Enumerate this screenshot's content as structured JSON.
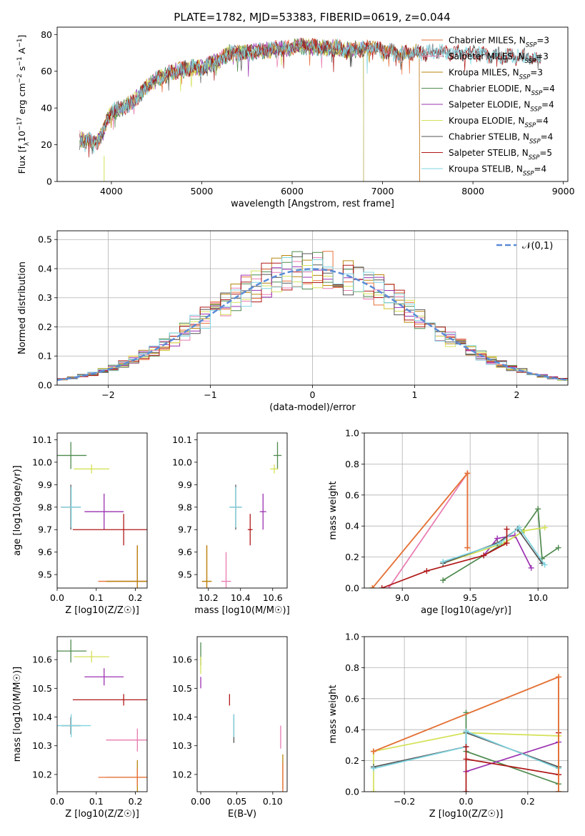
{
  "figure_title": "PLATE=1782, MJD=53383, FIBERID=0619, z=0.044",
  "colors": {
    "Chabrier MILES": "#e8703a",
    "Salpeter MILES": "#e87ab0",
    "Kroupa MILES": "#b8860b",
    "Chabrier ELODIE": "#4f8a4f",
    "Salpeter ELODIE": "#9b30b0",
    "Kroupa ELODIE": "#d4e157",
    "Chabrier STELIB": "#555555",
    "Salpeter STELIB": "#b01818",
    "Kroupa STELIB": "#7fd4e0",
    "normal": "#5b8bd6"
  },
  "chart_data": [
    {
      "id": "spectrum",
      "type": "line",
      "title": "PLATE=1782, MJD=53383, FIBERID=0619, z=0.044",
      "xlabel": "wavelength [Angstrom, rest frame]",
      "ylabel": "Flux [f_λ 10^-17 erg cm^-2 s^-1 A^-1]",
      "xlim": [
        3400,
        9050
      ],
      "ylim": [
        0,
        84
      ],
      "xticks": [
        4000,
        5000,
        6000,
        7000,
        8000,
        9000
      ],
      "yticks": [
        0,
        20,
        40,
        60,
        80
      ],
      "legend_position": "upper-right",
      "legend": [
        {
          "model": "Chabrier MILES",
          "label": "Chabrier MILES, N",
          "nssp": "=3"
        },
        {
          "model": "Salpeter MILES",
          "label": "Salpeter MILES, N",
          "nssp": "=3"
        },
        {
          "model": "Kroupa MILES",
          "label": "Kroupa MILES, N",
          "nssp": "=3"
        },
        {
          "model": "Chabrier ELODIE",
          "label": "Chabrier ELODIE, N",
          "nssp": "=4"
        },
        {
          "model": "Salpeter ELODIE",
          "label": "Salpeter ELODIE, N",
          "nssp": "=4"
        },
        {
          "model": "Kroupa ELODIE",
          "label": "Kroupa ELODIE, N",
          "nssp": "=4"
        },
        {
          "model": "Chabrier STELIB",
          "label": "Chabrier STELIB, N",
          "nssp": "=4"
        },
        {
          "model": "Salpeter STELIB",
          "label": "Salpeter STELIB, N",
          "nssp": "=5"
        },
        {
          "model": "Kroupa STELIB",
          "label": "Kroupa STELIB, N",
          "nssp": "=4"
        }
      ],
      "continuum": [
        [
          3650,
          24
        ],
        [
          3700,
          22
        ],
        [
          3750,
          23
        ],
        [
          3800,
          21
        ],
        [
          3850,
          22
        ],
        [
          3900,
          26
        ],
        [
          3950,
          33
        ],
        [
          4000,
          38
        ],
        [
          4100,
          40
        ],
        [
          4200,
          42
        ],
        [
          4300,
          46
        ],
        [
          4400,
          52
        ],
        [
          4500,
          56
        ],
        [
          4600,
          58
        ],
        [
          4700,
          60
        ],
        [
          4800,
          61
        ],
        [
          4900,
          62
        ],
        [
          5000,
          62
        ],
        [
          5100,
          64
        ],
        [
          5200,
          66
        ],
        [
          5300,
          70
        ],
        [
          5400,
          70
        ],
        [
          5500,
          70
        ],
        [
          5600,
          71
        ],
        [
          5700,
          71
        ],
        [
          5800,
          72
        ],
        [
          5900,
          72
        ],
        [
          6000,
          73
        ],
        [
          6100,
          74
        ],
        [
          6200,
          73
        ],
        [
          6300,
          73
        ],
        [
          6400,
          72
        ],
        [
          6500,
          73
        ],
        [
          6600,
          71
        ],
        [
          6700,
          72
        ],
        [
          6800,
          72
        ],
        [
          6900,
          73
        ],
        [
          7000,
          71
        ],
        [
          7100,
          71
        ],
        [
          7200,
          69
        ],
        [
          7300,
          70
        ],
        [
          7400,
          70
        ],
        [
          7500,
          70
        ],
        [
          7600,
          71
        ],
        [
          7700,
          70
        ],
        [
          7800,
          70
        ],
        [
          7900,
          70
        ],
        [
          8000,
          70
        ],
        [
          8200,
          69
        ],
        [
          8400,
          68
        ],
        [
          8600,
          68
        ],
        [
          8750,
          66
        ]
      ],
      "ranges": {
        "Chabrier MILES": [
          3650,
          7410
        ],
        "Salpeter MILES": [
          3650,
          7410
        ],
        "Kroupa MILES": [
          3650,
          7410
        ],
        "Chabrier ELODIE": [
          3650,
          6790
        ],
        "Salpeter ELODIE": [
          3650,
          6790
        ],
        "Kroupa ELODIE": [
          3650,
          6790
        ],
        "Chabrier STELIB": [
          3650,
          8750
        ],
        "Salpeter STELIB": [
          3650,
          8750
        ],
        "Kroupa STELIB": [
          3650,
          8750
        ]
      }
    },
    {
      "id": "residuals",
      "type": "line",
      "xlabel": "(data-model)/error",
      "ylabel": "Normed distribution",
      "xlim": [
        -2.5,
        2.5
      ],
      "ylim": [
        0,
        0.53
      ],
      "xticks": [
        -2,
        -1,
        0,
        1,
        2
      ],
      "yticks": [
        0.0,
        0.1,
        0.2,
        0.3,
        0.4,
        0.5
      ],
      "grid": true,
      "bin_width": 0.1,
      "legend_position": "upper-right",
      "normal_label": "𝒩(0,1)"
    },
    {
      "id": "age-Z",
      "type": "scatter",
      "xlabel": "Z [log10(Z/Z☉)]",
      "ylabel": "age [log10(age/yr)]",
      "xlim": [
        0.0,
        0.23
      ],
      "ylim": [
        9.44,
        10.13
      ],
      "xticks": [
        0.0,
        0.1,
        0.2
      ],
      "yticks": [
        9.5,
        9.6,
        9.7,
        9.8,
        9.9,
        10.0,
        10.1
      ],
      "points": [
        {
          "model": "Chabrier ELODIE",
          "x": 0.035,
          "y": 10.03,
          "xerr": 0.04,
          "yerr": 0.06
        },
        {
          "model": "Kroupa ELODIE",
          "x": 0.088,
          "y": 9.97,
          "xerr": 0.045,
          "yerr": 0.02
        },
        {
          "model": "Chabrier STELIB",
          "x": 0.035,
          "y": 9.8,
          "xerr": 0.025,
          "yerr": 0.1
        },
        {
          "model": "Kroupa STELIB",
          "x": 0.036,
          "y": 9.8,
          "xerr": 0.025,
          "yerr": 0.09
        },
        {
          "model": "Salpeter ELODIE",
          "x": 0.12,
          "y": 9.78,
          "xerr": 0.05,
          "yerr": 0.08
        },
        {
          "model": "Salpeter STELIB",
          "x": 0.17,
          "y": 9.7,
          "xerr": 0.13,
          "yerr": 0.07
        },
        {
          "model": "Chabrier MILES",
          "x": 0.205,
          "y": 9.47,
          "xerr": 0.1,
          "yerr": 0.16
        },
        {
          "model": "Salpeter MILES",
          "x": 0.205,
          "y": 9.47,
          "xerr": 0.08,
          "yerr": 0.16
        },
        {
          "model": "Kroupa MILES",
          "x": 0.205,
          "y": 9.47,
          "xerr": 0.08,
          "yerr": 0.16
        }
      ]
    },
    {
      "id": "age-mass",
      "type": "scatter",
      "xlabel": "mass [log10(M/M☉)]",
      "ylabel": "",
      "xlim": [
        10.13,
        10.69
      ],
      "ylim": [
        9.44,
        10.13
      ],
      "xticks": [
        10.2,
        10.4,
        10.6
      ],
      "yticks": [
        9.5,
        9.6,
        9.7,
        9.8,
        9.9,
        10.0,
        10.1
      ],
      "points": [
        {
          "model": "Chabrier ELODIE",
          "x": 10.63,
          "y": 10.03,
          "xerr": 0.025,
          "yerr": 0.06
        },
        {
          "model": "Kroupa ELODIE",
          "x": 10.61,
          "y": 9.97,
          "xerr": 0.025,
          "yerr": 0.02
        },
        {
          "model": "Chabrier STELIB",
          "x": 10.37,
          "y": 9.8,
          "xerr": 0.035,
          "yerr": 0.1
        },
        {
          "model": "Kroupa STELIB",
          "x": 10.37,
          "y": 9.8,
          "xerr": 0.04,
          "yerr": 0.09
        },
        {
          "model": "Salpeter ELODIE",
          "x": 10.54,
          "y": 9.78,
          "xerr": 0.02,
          "yerr": 0.08
        },
        {
          "model": "Salpeter STELIB",
          "x": 10.46,
          "y": 9.7,
          "xerr": 0.015,
          "yerr": 0.07
        },
        {
          "model": "Chabrier MILES",
          "x": 10.19,
          "y": 9.47,
          "xerr": 0.03,
          "yerr": 0.16
        },
        {
          "model": "Salpeter MILES",
          "x": 10.31,
          "y": 9.47,
          "xerr": 0.03,
          "yerr": 0.13
        },
        {
          "model": "Kroupa MILES",
          "x": 10.19,
          "y": 9.47,
          "xerr": 0.03,
          "yerr": 0.16
        }
      ]
    },
    {
      "id": "mw-age",
      "type": "line",
      "xlabel": "age [log10(age/yr)]",
      "ylabel": "mass weight",
      "xlim": [
        8.72,
        10.22
      ],
      "ylim": [
        0,
        1.0
      ],
      "xticks": [
        9.0,
        9.5,
        10.0
      ],
      "yticks": [
        0.0,
        0.2,
        0.4,
        0.6,
        0.8,
        1.0
      ],
      "grid": true,
      "series": [
        {
          "model": "Salpeter MILES",
          "points": [
            [
              8.9,
              0.0
            ],
            [
              9.48,
              0.74
            ],
            [
              9.48,
              0.26
            ]
          ]
        },
        {
          "model": "Kroupa MILES",
          "points": [
            [
              8.78,
              0.0
            ],
            [
              9.48,
              0.74
            ],
            [
              9.48,
              0.26
            ]
          ]
        },
        {
          "model": "Chabrier MILES",
          "points": [
            [
              8.78,
              0.0
            ],
            [
              9.48,
              0.74
            ],
            [
              9.48,
              0.26
            ]
          ]
        },
        {
          "model": "Chabrier ELODIE",
          "points": [
            [
              9.3,
              0.05
            ],
            [
              9.88,
              0.36
            ],
            [
              10.0,
              0.51
            ],
            [
              10.03,
              0.19
            ],
            [
              10.15,
              0.26
            ]
          ]
        },
        {
          "model": "Salpeter ELODIE",
          "points": [
            [
              9.6,
              0.21
            ],
            [
              9.7,
              0.32
            ],
            [
              9.83,
              0.34
            ],
            [
              9.95,
              0.13
            ]
          ]
        },
        {
          "model": "Kroupa ELODIE",
          "points": [
            [
              9.3,
              0.16
            ],
            [
              9.75,
              0.29
            ],
            [
              9.9,
              0.37
            ],
            [
              10.05,
              0.39
            ]
          ]
        },
        {
          "model": "Chabrier STELIB",
          "points": [
            [
              9.3,
              0.16
            ],
            [
              9.7,
              0.29
            ],
            [
              9.85,
              0.38
            ],
            [
              10.03,
              0.16
            ]
          ]
        },
        {
          "model": "Kroupa STELIB",
          "points": [
            [
              9.3,
              0.17
            ],
            [
              9.72,
              0.29
            ],
            [
              9.86,
              0.39
            ],
            [
              10.05,
              0.15
            ]
          ]
        },
        {
          "model": "Salpeter STELIB",
          "points": [
            [
              8.85,
              0.0
            ],
            [
              9.18,
              0.11
            ],
            [
              9.6,
              0.21
            ],
            [
              9.77,
              0.29
            ],
            [
              9.77,
              0.38
            ]
          ]
        }
      ]
    },
    {
      "id": "mass-Z",
      "type": "scatter",
      "xlabel": "Z [log10(Z/Z☉)]",
      "ylabel": "mass [log10(M/M☉)]",
      "xlim": [
        0.0,
        0.23
      ],
      "ylim": [
        10.14,
        10.68
      ],
      "xticks": [
        0.0,
        0.1,
        0.2
      ],
      "yticks": [
        10.2,
        10.3,
        10.4,
        10.5,
        10.6
      ],
      "points": [
        {
          "model": "Chabrier ELODIE",
          "x": 0.035,
          "y": 10.63,
          "xerr": 0.04,
          "yerr": 0.04
        },
        {
          "model": "Kroupa ELODIE",
          "x": 0.088,
          "y": 10.61,
          "xerr": 0.045,
          "yerr": 0.02
        },
        {
          "model": "Salpeter ELODIE",
          "x": 0.12,
          "y": 10.54,
          "xerr": 0.05,
          "yerr": 0.03
        },
        {
          "model": "Salpeter STELIB",
          "x": 0.17,
          "y": 10.46,
          "xerr": 0.13,
          "yerr": 0.02
        },
        {
          "model": "Chabrier STELIB",
          "x": 0.035,
          "y": 10.37,
          "xerr": 0.025,
          "yerr": 0.03
        },
        {
          "model": "Kroupa STELIB",
          "x": 0.036,
          "y": 10.37,
          "xerr": 0.05,
          "yerr": 0.04
        },
        {
          "model": "Salpeter MILES",
          "x": 0.205,
          "y": 10.32,
          "xerr": 0.08,
          "yerr": 0.04
        },
        {
          "model": "Kroupa MILES",
          "x": 0.205,
          "y": 10.19,
          "xerr": 0.08,
          "yerr": 0.06
        },
        {
          "model": "Chabrier MILES",
          "x": 0.205,
          "y": 10.19,
          "xerr": 0.1,
          "yerr": 0.03
        }
      ]
    },
    {
      "id": "mass-ebv",
      "type": "scatter",
      "xlabel": "E(B-V)",
      "ylabel": "",
      "xlim": [
        -0.005,
        0.12
      ],
      "ylim": [
        10.14,
        10.68
      ],
      "xticks": [
        0.0,
        0.05,
        0.1
      ],
      "yticks": [
        10.2,
        10.3,
        10.4,
        10.5,
        10.6
      ],
      "points": [
        {
          "model": "Chabrier ELODIE",
          "x": 0.0,
          "y": 10.62,
          "xerr": 0,
          "yerr": 0.04
        },
        {
          "model": "Kroupa ELODIE",
          "x": 0.0,
          "y": 10.58,
          "xerr": 0,
          "yerr": 0.03
        },
        {
          "model": "Salpeter ELODIE",
          "x": 0.0,
          "y": 10.52,
          "xerr": 0,
          "yerr": 0.02
        },
        {
          "model": "Salpeter STELIB",
          "x": 0.04,
          "y": 10.46,
          "xerr": 0,
          "yerr": 0.02
        },
        {
          "model": "Chabrier STELIB",
          "x": 0.046,
          "y": 10.36,
          "xerr": 0,
          "yerr": 0.05
        },
        {
          "model": "Kroupa STELIB",
          "x": 0.046,
          "y": 10.37,
          "xerr": 0,
          "yerr": 0.04
        },
        {
          "model": "Salpeter MILES",
          "x": 0.111,
          "y": 10.33,
          "xerr": 0,
          "yerr": 0.04
        },
        {
          "model": "Kroupa MILES",
          "x": 0.114,
          "y": 10.21,
          "xerr": 0,
          "yerr": 0.06
        },
        {
          "model": "Chabrier MILES",
          "x": 0.114,
          "y": 10.19,
          "xerr": 0,
          "yerr": 0.05
        }
      ]
    },
    {
      "id": "mw-Z",
      "type": "line",
      "xlabel": "Z [log10(Z/Z☉)]",
      "ylabel": "mass weight",
      "xlim": [
        -0.33,
        0.33
      ],
      "ylim": [
        0,
        1.0
      ],
      "xticks": [
        -0.2,
        0.0,
        0.2
      ],
      "yticks": [
        0.0,
        0.2,
        0.4,
        0.6,
        0.8,
        1.0
      ],
      "grid": true,
      "series": [
        {
          "model": "Kroupa ELODIE",
          "points": [
            [
              -0.3,
              0.0
            ],
            [
              -0.3,
              0.26
            ],
            [
              0.0,
              0.38
            ],
            [
              0.3,
              0.36
            ]
          ]
        },
        {
          "model": "Chabrier ELODIE",
          "points": [
            [
              0.0,
              0.51
            ],
            [
              0.0,
              0.26
            ],
            [
              0.3,
              0.05
            ]
          ]
        },
        {
          "model": "Salpeter ELODIE",
          "points": [
            [
              0.0,
              0.13
            ],
            [
              0.3,
              0.32
            ]
          ]
        },
        {
          "model": "Chabrier STELIB",
          "points": [
            [
              -0.3,
              0.16
            ],
            [
              0.0,
              0.29
            ],
            [
              0.0,
              0.38
            ],
            [
              0.3,
              0.16
            ]
          ]
        },
        {
          "model": "Kroupa STELIB",
          "points": [
            [
              -0.3,
              0.15
            ],
            [
              0.0,
              0.29
            ],
            [
              0.0,
              0.39
            ],
            [
              0.3,
              0.15
            ]
          ]
        },
        {
          "model": "Salpeter STELIB",
          "points": [
            [
              0.0,
              0.0
            ],
            [
              0.0,
              0.29
            ],
            [
              0.0,
              0.21
            ],
            [
              0.3,
              0.11
            ],
            [
              0.3,
              0.38
            ]
          ]
        },
        {
          "model": "Kroupa MILES",
          "points": [
            [
              -0.3,
              0.26
            ],
            [
              0.3,
              0.74
            ],
            [
              0.3,
              0.0
            ]
          ]
        },
        {
          "model": "Chabrier MILES",
          "points": [
            [
              -0.3,
              0.26
            ],
            [
              0.3,
              0.74
            ],
            [
              0.3,
              0.0
            ]
          ]
        }
      ]
    }
  ]
}
